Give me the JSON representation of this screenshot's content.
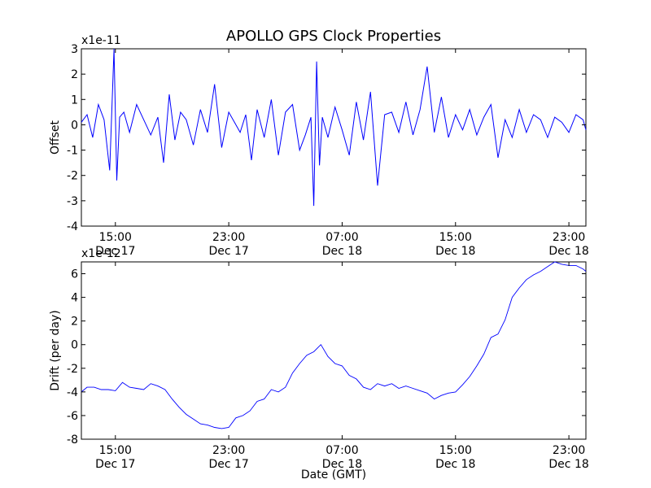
{
  "chart_data": [
    {
      "type": "line",
      "title": "APOLLO GPS Clock Properties",
      "ylabel": "Offset",
      "xlabel": "",
      "y_multiplier_label": "x1e-11",
      "y_scale_note": "values in units of 1e-11",
      "xlim_hours": [
        12.6,
        48.2
      ],
      "ylim": [
        -4,
        3
      ],
      "y_ticks": [
        "-4",
        "-3",
        "-2",
        "-1",
        "0",
        "1",
        "2",
        "3"
      ],
      "x_ticks": [
        {
          "hour": 15,
          "time": "15:00",
          "date": "Dec 17"
        },
        {
          "hour": 23,
          "time": "23:00",
          "date": "Dec 17"
        },
        {
          "hour": 31,
          "time": "07:00",
          "date": "Dec 18"
        },
        {
          "hour": 39,
          "time": "15:00",
          "date": "Dec 18"
        },
        {
          "hour": 47,
          "time": "23:00",
          "date": "Dec 18"
        }
      ],
      "series_color": "#0000ff",
      "grid": false,
      "series": [
        {
          "name": "",
          "x_hours": [
            12.6,
            13.0,
            13.4,
            13.8,
            14.2,
            14.6,
            14.9,
            15.1,
            15.3,
            15.6,
            16.0,
            16.5,
            17.0,
            17.5,
            18.0,
            18.4,
            18.8,
            19.2,
            19.6,
            20.0,
            20.5,
            21.0,
            21.5,
            22.0,
            22.5,
            23.0,
            23.4,
            23.8,
            24.2,
            24.6,
            25.0,
            25.5,
            26.0,
            26.5,
            27.0,
            27.5,
            28.0,
            28.4,
            28.8,
            29.0,
            29.2,
            29.4,
            29.6,
            30.0,
            30.5,
            31.0,
            31.5,
            32.0,
            32.5,
            33.0,
            33.5,
            34.0,
            34.5,
            35.0,
            35.5,
            36.0,
            36.5,
            37.0,
            37.5,
            38.0,
            38.5,
            39.0,
            39.5,
            40.0,
            40.5,
            41.0,
            41.5,
            42.0,
            42.5,
            43.0,
            43.5,
            44.0,
            44.5,
            45.0,
            45.5,
            46.0,
            46.5,
            47.0,
            47.5,
            48.0,
            48.2
          ],
          "values": [
            0.1,
            0.4,
            -0.5,
            0.8,
            0.2,
            -1.8,
            3.0,
            -2.2,
            0.3,
            0.5,
            -0.3,
            0.8,
            0.2,
            -0.4,
            0.3,
            -1.5,
            1.2,
            -0.6,
            0.5,
            0.2,
            -0.8,
            0.6,
            -0.3,
            1.6,
            -0.9,
            0.5,
            0.1,
            -0.3,
            0.4,
            -1.4,
            0.6,
            -0.5,
            1.0,
            -1.2,
            0.5,
            0.8,
            -1.0,
            -0.4,
            0.3,
            -3.2,
            2.5,
            -1.6,
            0.3,
            -0.5,
            0.7,
            -0.2,
            -1.2,
            0.9,
            -0.6,
            1.3,
            -2.4,
            0.4,
            0.5,
            -0.3,
            0.9,
            -0.4,
            0.6,
            2.3,
            -0.3,
            1.1,
            -0.5,
            0.4,
            -0.2,
            0.6,
            -0.4,
            0.3,
            0.8,
            -1.3,
            0.2,
            -0.5,
            0.6,
            -0.3,
            0.4,
            0.2,
            -0.5,
            0.3,
            0.1,
            -0.3,
            0.4,
            0.2,
            -0.2
          ]
        }
      ]
    },
    {
      "type": "line",
      "title": "",
      "ylabel": "Drift (per day)",
      "xlabel": "Date (GMT)",
      "y_multiplier_label": "x1e-12",
      "y_scale_note": "values in units of 1e-12",
      "xlim_hours": [
        12.6,
        48.2
      ],
      "ylim": [
        -8,
        7
      ],
      "y_ticks": [
        "-8",
        "-6",
        "-4",
        "-2",
        "0",
        "2",
        "4",
        "6"
      ],
      "x_ticks": [
        {
          "hour": 15,
          "time": "15:00",
          "date": "Dec 17"
        },
        {
          "hour": 23,
          "time": "23:00",
          "date": "Dec 17"
        },
        {
          "hour": 31,
          "time": "07:00",
          "date": "Dec 18"
        },
        {
          "hour": 39,
          "time": "15:00",
          "date": "Dec 18"
        },
        {
          "hour": 47,
          "time": "23:00",
          "date": "Dec 18"
        }
      ],
      "series_color": "#0000ff",
      "grid": false,
      "series": [
        {
          "name": "",
          "x_hours": [
            12.6,
            13.0,
            13.5,
            14.0,
            14.5,
            15.0,
            15.5,
            16.0,
            16.5,
            17.0,
            17.5,
            18.0,
            18.5,
            19.0,
            19.5,
            20.0,
            20.5,
            21.0,
            21.5,
            22.0,
            22.5,
            23.0,
            23.5,
            24.0,
            24.5,
            25.0,
            25.5,
            26.0,
            26.5,
            27.0,
            27.5,
            28.0,
            28.5,
            29.0,
            29.5,
            30.0,
            30.5,
            31.0,
            31.5,
            32.0,
            32.5,
            33.0,
            33.5,
            34.0,
            34.5,
            35.0,
            35.5,
            36.0,
            36.5,
            37.0,
            37.5,
            38.0,
            38.5,
            39.0,
            39.5,
            40.0,
            40.5,
            41.0,
            41.5,
            42.0,
            42.5,
            43.0,
            43.5,
            44.0,
            44.5,
            45.0,
            45.5,
            46.0,
            46.5,
            47.0,
            47.5,
            48.0,
            48.2
          ],
          "values": [
            -4.0,
            -3.6,
            -3.6,
            -3.8,
            -3.8,
            -3.9,
            -3.2,
            -3.6,
            -3.7,
            -3.8,
            -3.3,
            -3.5,
            -3.8,
            -4.6,
            -5.3,
            -5.9,
            -6.3,
            -6.7,
            -6.8,
            -7.0,
            -7.1,
            -7.0,
            -6.2,
            -6.0,
            -5.6,
            -4.8,
            -4.6,
            -3.8,
            -4.0,
            -3.6,
            -2.4,
            -1.6,
            -0.9,
            -0.6,
            0.0,
            -1.0,
            -1.6,
            -1.8,
            -2.6,
            -2.9,
            -3.6,
            -3.8,
            -3.3,
            -3.5,
            -3.3,
            -3.7,
            -3.5,
            -3.7,
            -3.9,
            -4.1,
            -4.6,
            -4.3,
            -4.1,
            -4.0,
            -3.4,
            -2.7,
            -1.8,
            -0.8,
            0.6,
            0.9,
            2.1,
            4.0,
            4.8,
            5.5,
            5.9,
            6.2,
            6.6,
            7.0,
            6.8,
            6.7,
            6.7,
            6.4,
            6.2
          ]
        }
      ]
    }
  ]
}
